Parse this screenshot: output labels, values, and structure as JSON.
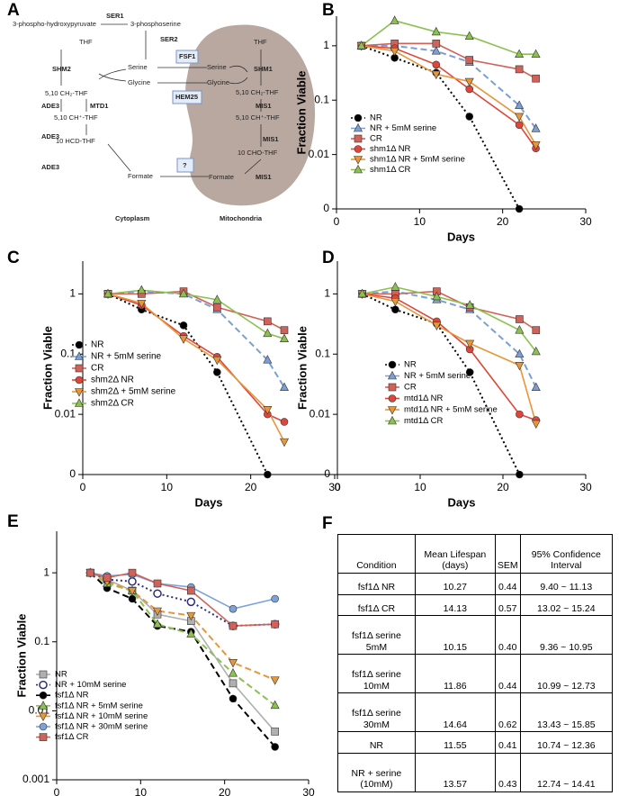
{
  "panel_labels": [
    "A",
    "B",
    "C",
    "D",
    "E",
    "F"
  ],
  "diagram": {
    "nodes": [
      "3-phospho-hydroxypyruvate",
      "SER1",
      "3-phosphoserine",
      "SER2",
      "THF",
      "SHM2",
      "Serine",
      "Glycine",
      "FSF1",
      "HEM25",
      "5,10 CH₂-THF",
      "ADE3",
      "MTD1",
      "5,10 CH⁺-THF",
      "ADE3",
      "10 HCD-THF",
      "ADE3",
      "Formate",
      "?",
      "THF",
      "Serine",
      "Glycine",
      "SHM1",
      "5,10 CH₂-THF",
      "MIS1",
      "5,10 CH⁺-THF",
      "MIS1",
      "10 CHO-THF",
      "Formate",
      "MIS1",
      "Cytoplasm",
      "Mitochondria"
    ]
  },
  "chart_data": [
    {
      "type": "line",
      "ylabel": "Fraction Viable",
      "xlabel": "Days",
      "log_scale": true,
      "x": [
        3,
        7,
        12,
        16,
        22,
        24
      ],
      "xlim": [
        0,
        30
      ],
      "xticks": [
        0,
        10,
        20,
        30
      ],
      "ylim": [
        0,
        3.5
      ],
      "yticks": [
        0,
        0.01,
        0.1,
        1
      ],
      "series": [
        {
          "name": "NR",
          "color": "#000000",
          "line_style": "dotted",
          "marker": "circle",
          "values": [
            1,
            0.6,
            0.32,
            0.05,
            0,
            null
          ]
        },
        {
          "name": "NR + 5mM serine",
          "color": "#7b9fd4",
          "line_style": "dashed",
          "marker": "triangle",
          "values": [
            1,
            1.0,
            0.8,
            0.5,
            0.08,
            0.03
          ]
        },
        {
          "name": "CR",
          "color": "#d0625a",
          "line_style": "solid",
          "marker": "square",
          "values": [
            1,
            1.1,
            1.1,
            0.55,
            0.37,
            0.25
          ]
        },
        {
          "name": "shm1Δ NR",
          "color": "#e0453a",
          "line_style": "solid",
          "marker": "circle",
          "values": [
            1,
            0.9,
            0.45,
            0.16,
            0.035,
            0.013
          ]
        },
        {
          "name": "shm1Δ NR + 5mM serine",
          "color": "#e8963a",
          "line_style": "solid",
          "marker": "triangle-down",
          "values": [
            1,
            0.8,
            0.3,
            0.22,
            0.05,
            0.015
          ]
        },
        {
          "name": "shm1Δ CR",
          "color": "#8cc151",
          "line_style": "solid",
          "marker": "triangle",
          "values": [
            1,
            2.9,
            1.8,
            1.5,
            0.7,
            0.7
          ]
        }
      ]
    },
    {
      "type": "line",
      "ylabel": "Fraction Viable",
      "xlabel": "Days",
      "log_scale": true,
      "x": [
        3,
        7,
        12,
        16,
        22,
        24
      ],
      "xlim": [
        0,
        30
      ],
      "xticks": [
        0,
        10,
        20,
        30
      ],
      "ylim": [
        0,
        3.5
      ],
      "yticks": [
        0,
        0.01,
        0.1,
        1
      ],
      "series": [
        {
          "name": "NR",
          "color": "#000000",
          "line_style": "dotted",
          "marker": "circle",
          "values": [
            1,
            0.55,
            0.3,
            0.05,
            0,
            null
          ]
        },
        {
          "name": "NR + 5mM serine",
          "color": "#7b9fd4",
          "line_style": "dashed",
          "marker": "triangle",
          "values": [
            1,
            1.1,
            1.0,
            0.55,
            0.08,
            0.028
          ]
        },
        {
          "name": "CR",
          "color": "#d0625a",
          "line_style": "solid",
          "marker": "square",
          "values": [
            1,
            1.0,
            1.1,
            0.6,
            0.35,
            0.25
          ]
        },
        {
          "name": "shm2Δ NR",
          "color": "#e0453a",
          "line_style": "solid",
          "marker": "circle",
          "values": [
            1,
            0.65,
            0.2,
            0.09,
            0.01,
            0.0075
          ]
        },
        {
          "name": "shm2Δ + 5mM serine",
          "color": "#e8963a",
          "line_style": "solid",
          "marker": "triangle-down",
          "values": [
            1,
            0.7,
            0.18,
            0.08,
            0.012,
            0.0035
          ]
        },
        {
          "name": "shm2Δ CR",
          "color": "#8cc151",
          "line_style": "solid",
          "marker": "triangle",
          "values": [
            1,
            1.15,
            1.0,
            0.8,
            0.22,
            0.18
          ]
        }
      ]
    },
    {
      "type": "line",
      "ylabel": "Fraction Viable",
      "xlabel": "Days",
      "log_scale": true,
      "x": [
        3,
        7,
        12,
        16,
        22,
        24
      ],
      "xlim": [
        0,
        30
      ],
      "xticks": [
        0,
        10,
        20,
        30
      ],
      "ylim": [
        0,
        3.5
      ],
      "yticks": [
        0,
        0.01,
        0.1,
        1
      ],
      "series": [
        {
          "name": "NR",
          "color": "#000000",
          "line_style": "dotted",
          "marker": "circle",
          "values": [
            1,
            0.55,
            0.32,
            0.05,
            0,
            null
          ]
        },
        {
          "name": "NR + 5mM serine",
          "color": "#7b9fd4",
          "line_style": "dashed",
          "marker": "triangle",
          "values": [
            1,
            1.1,
            0.8,
            0.55,
            0.1,
            0.028
          ]
        },
        {
          "name": "CR",
          "color": "#d0625a",
          "line_style": "solid",
          "marker": "square",
          "values": [
            1,
            1.0,
            1.1,
            0.6,
            0.38,
            0.25
          ]
        },
        {
          "name": "mtd1Δ NR",
          "color": "#e0453a",
          "line_style": "solid",
          "marker": "circle",
          "values": [
            1,
            0.85,
            0.35,
            0.12,
            0.01,
            0.008
          ]
        },
        {
          "name": "mtd1Δ  NR + 5mM serine",
          "color": "#e8963a",
          "line_style": "solid",
          "marker": "triangle-down",
          "values": [
            1,
            0.75,
            0.3,
            0.15,
            0.065,
            0.007
          ]
        },
        {
          "name": "mtd1Δ CR",
          "color": "#8cc151",
          "line_style": "solid",
          "marker": "triangle",
          "values": [
            1,
            1.3,
            0.9,
            0.65,
            0.25,
            0.11
          ]
        }
      ]
    },
    {
      "type": "line",
      "ylabel": "Fraction Viable",
      "xlabel": "Days",
      "log_scale": true,
      "x": [
        4,
        6,
        9,
        12,
        16,
        21,
        26
      ],
      "xlim": [
        0,
        30
      ],
      "xticks": [
        0,
        10,
        20,
        30
      ],
      "ylim": [
        0.001,
        4
      ],
      "yticks": [
        0.001,
        0.01,
        0.1,
        1
      ],
      "series": [
        {
          "name": "NR",
          "color": "#b0b0b0",
          "line_style": "solid",
          "marker": "square",
          "values": [
            1,
            0.8,
            0.55,
            0.25,
            0.2,
            0.025,
            0.005
          ]
        },
        {
          "name": "NR + 10mM serine",
          "color": "#2d2d7a",
          "line_style": "dotted",
          "marker": "open-circle",
          "values": [
            1,
            0.8,
            0.75,
            0.5,
            0.38,
            0.17,
            0.18
          ]
        },
        {
          "name": "fsf1Δ NR",
          "color": "#000000",
          "line_style": "dashed",
          "marker": "circle",
          "values": [
            1,
            0.6,
            0.42,
            0.17,
            0.14,
            0.015,
            0.003
          ]
        },
        {
          "name": "fsf1Δ NR + 5mM serine",
          "color": "#8cc151",
          "line_style": "dashed",
          "marker": "triangle",
          "values": [
            1,
            0.7,
            0.55,
            0.18,
            0.13,
            0.035,
            0.012
          ]
        },
        {
          "name": "fsf1Δ NR + 10mM serine",
          "color": "#e8963a",
          "line_style": "dashed",
          "marker": "triangle-down",
          "values": [
            1,
            0.75,
            0.55,
            0.28,
            0.24,
            0.05,
            0.028
          ]
        },
        {
          "name": "fsf1Δ NR + 30mM serine",
          "color": "#7ba3d9",
          "line_style": "solid",
          "marker": "circle",
          "values": [
            1,
            0.9,
            0.95,
            0.7,
            0.62,
            0.3,
            0.42
          ]
        },
        {
          "name": "fsf1Δ CR",
          "color": "#d0625a",
          "line_style": "solid",
          "marker": "square",
          "values": [
            1,
            0.85,
            1.0,
            0.7,
            0.55,
            0.17,
            0.18
          ]
        }
      ]
    }
  ],
  "table": {
    "header": [
      "Condition",
      "Mean Lifespan (days)",
      "SEM",
      "95% Confidence Interval"
    ],
    "rows": [
      [
        "fsf1Δ NR",
        "10.27",
        "0.44",
        "9.40 ~ 11.13"
      ],
      [
        "fsf1Δ  CR",
        "14.13",
        "0.57",
        "13.02 ~ 15.24"
      ],
      [
        "fsf1Δ  serine 5mM",
        "10.15",
        "0.40",
        "9.36 ~ 10.95"
      ],
      [
        "fsf1Δ serine 10mM",
        "11.86",
        "0.44",
        "10.99 ~ 12.73"
      ],
      [
        "fsf1Δ serine 30mM",
        "14.64",
        "0.62",
        "13.43 ~ 15.85"
      ],
      [
        "NR",
        "11.55",
        "0.41",
        "10.74 ~ 12.36"
      ],
      [
        "NR + serine (10mM)",
        "13.57",
        "0.43",
        "12.74 ~ 14.41"
      ]
    ]
  }
}
